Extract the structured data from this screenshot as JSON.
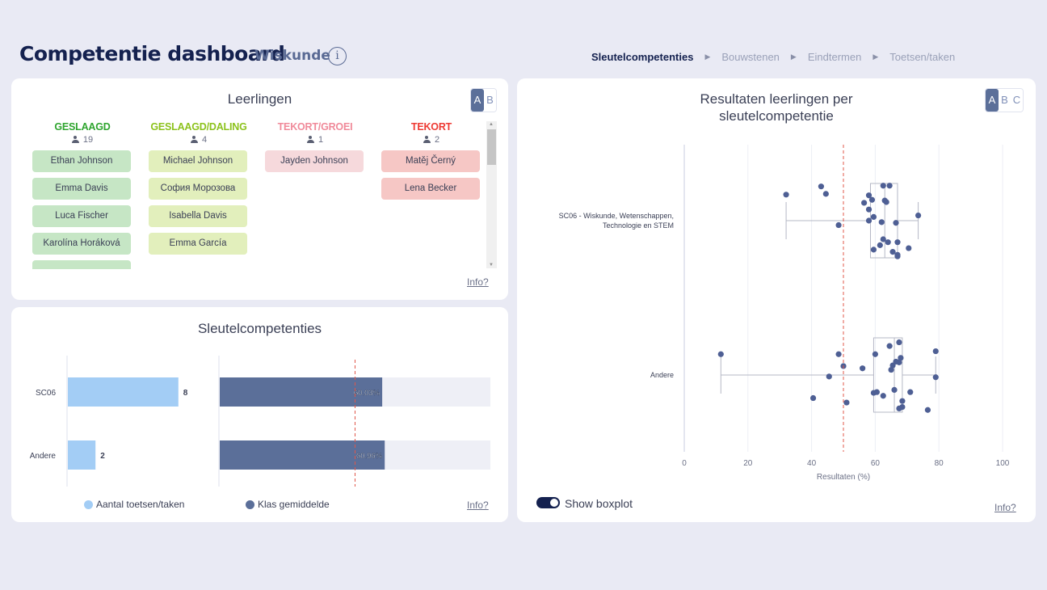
{
  "header": {
    "title": "Competentie dashboard",
    "subtitle": "Wiskunde",
    "info_icon": "info-circle-icon",
    "breadcrumbs": [
      "Sleutelcompetenties",
      "Bouwstenen",
      "Eindtermen",
      "Toetsen/taken"
    ],
    "active_crumb": "Sleutelcompetenties"
  },
  "leerlingen": {
    "title": "Leerlingen",
    "toggle_options": [
      "A",
      "B"
    ],
    "selected": "A",
    "info_link": "Info?",
    "columns": [
      {
        "label": "GESLAAGD",
        "count": "19",
        "color": "#2fa52f",
        "students": [
          "Ethan Johnson",
          "Emma Davis",
          "Luca Fischer",
          "Karolína Horáková"
        ]
      },
      {
        "label": "GESLAAGD/DALING",
        "count": "4",
        "color": "#8cc21c",
        "students": [
          "Michael Johnson",
          "София Морозова",
          "Isabella Davis",
          "Emma García"
        ]
      },
      {
        "label": "TEKORT/GROEI",
        "count": "1",
        "color": "#f08a9a",
        "students": [
          "Jayden Johnson"
        ]
      },
      {
        "label": "TEKORT",
        "count": "2",
        "color": "#ee3a33",
        "students": [
          "Matěj Černý",
          "Lena Becker"
        ]
      }
    ]
  },
  "sleutelcompetenties": {
    "title": "Sleutelcompetenties",
    "info_link": "Info?",
    "legend": [
      "Aantal toetsen/taken",
      "Klas gemiddelde"
    ],
    "colors": {
      "count": "#a3cdf5",
      "avg": "#5b6f99",
      "avg_bg": "#eeeff6",
      "threshold": "#e0574a"
    },
    "chart_data": {
      "type": "bar",
      "categories": [
        "SC06",
        "Andere"
      ],
      "series": [
        {
          "name": "Aantal toetsen/taken",
          "values": [
            8,
            2
          ],
          "labels": [
            "8",
            "2"
          ]
        },
        {
          "name": "Klas gemiddelde",
          "values": [
            60.03,
            60.96
          ],
          "labels": [
            "60.03%",
            "60.96%"
          ]
        }
      ],
      "count_max": 10,
      "avg_max": 100,
      "threshold": 50
    }
  },
  "resultaten": {
    "title_line1": "Resultaten leerlingen per",
    "title_line2": "sleutelcompetentie",
    "toggle_options": [
      "A",
      "B",
      "C"
    ],
    "selected": "A",
    "show_boxplot_label": "Show boxplot",
    "show_boxplot": true,
    "info_link": "Info?",
    "chart_data": {
      "type": "scatter",
      "xlabel": "Resultaten (%)",
      "xlim": [
        0,
        100
      ],
      "xticks": [
        "0",
        "20",
        "40",
        "60",
        "80",
        "100"
      ],
      "threshold": 50,
      "point_color": "#4e5f94",
      "groups": [
        {
          "label_lines": [
            "SC06 - Wiskunde, Wetenschappen,",
            "Technologie en STEM"
          ],
          "box": {
            "min": 32,
            "q1": 58.5,
            "median": 63,
            "q3": 67,
            "max": 73.5
          },
          "points": [
            {
              "x": 32,
              "jitter": -0.35
            },
            {
              "x": 43,
              "jitter": -0.46
            },
            {
              "x": 44.5,
              "jitter": -0.36
            },
            {
              "x": 48.5,
              "jitter": 0.06
            },
            {
              "x": 62.5,
              "jitter": -0.47
            },
            {
              "x": 64.5,
              "jitter": -0.47
            },
            {
              "x": 58,
              "jitter": -0.34
            },
            {
              "x": 59,
              "jitter": -0.28
            },
            {
              "x": 56.5,
              "jitter": -0.24
            },
            {
              "x": 63,
              "jitter": -0.27
            },
            {
              "x": 63.5,
              "jitter": -0.25
            },
            {
              "x": 58,
              "jitter": -0.15
            },
            {
              "x": 59.5,
              "jitter": -0.05
            },
            {
              "x": 58,
              "jitter": 0.0
            },
            {
              "x": 62,
              "jitter": 0.02
            },
            {
              "x": 66.5,
              "jitter": 0.03
            },
            {
              "x": 73.5,
              "jitter": -0.07
            },
            {
              "x": 62.5,
              "jitter": 0.25
            },
            {
              "x": 64,
              "jitter": 0.29
            },
            {
              "x": 61.5,
              "jitter": 0.33
            },
            {
              "x": 67,
              "jitter": 0.29
            },
            {
              "x": 59.5,
              "jitter": 0.39
            },
            {
              "x": 65.5,
              "jitter": 0.42
            },
            {
              "x": 70.5,
              "jitter": 0.37
            },
            {
              "x": 67,
              "jitter": 0.48
            },
            {
              "x": 67,
              "jitter": 0.46
            }
          ]
        },
        {
          "label_lines": [
            "Andere"
          ],
          "box": {
            "min": 11.5,
            "q1": 59.5,
            "median": 66,
            "q3": 68.5,
            "max": 79
          },
          "points": [
            {
              "x": 11.5,
              "jitter": -0.28
            },
            {
              "x": 48.5,
              "jitter": -0.28
            },
            {
              "x": 50,
              "jitter": -0.12
            },
            {
              "x": 45.5,
              "jitter": 0.02
            },
            {
              "x": 40.5,
              "jitter": 0.31
            },
            {
              "x": 51,
              "jitter": 0.37
            },
            {
              "x": 56,
              "jitter": -0.09
            },
            {
              "x": 60,
              "jitter": -0.28
            },
            {
              "x": 64.5,
              "jitter": -0.39
            },
            {
              "x": 67.5,
              "jitter": -0.44
            },
            {
              "x": 68,
              "jitter": -0.23
            },
            {
              "x": 66.5,
              "jitter": -0.18
            },
            {
              "x": 67.5,
              "jitter": -0.17
            },
            {
              "x": 65.5,
              "jitter": -0.13
            },
            {
              "x": 65,
              "jitter": -0.07
            },
            {
              "x": 79,
              "jitter": -0.32
            },
            {
              "x": 79,
              "jitter": 0.03
            },
            {
              "x": 66,
              "jitter": 0.2
            },
            {
              "x": 59.5,
              "jitter": 0.24
            },
            {
              "x": 60.5,
              "jitter": 0.23
            },
            {
              "x": 62.5,
              "jitter": 0.28
            },
            {
              "x": 71,
              "jitter": 0.23
            },
            {
              "x": 68.5,
              "jitter": 0.35
            },
            {
              "x": 68.5,
              "jitter": 0.43
            },
            {
              "x": 67.5,
              "jitter": 0.45
            },
            {
              "x": 76.5,
              "jitter": 0.47
            }
          ]
        }
      ]
    }
  }
}
